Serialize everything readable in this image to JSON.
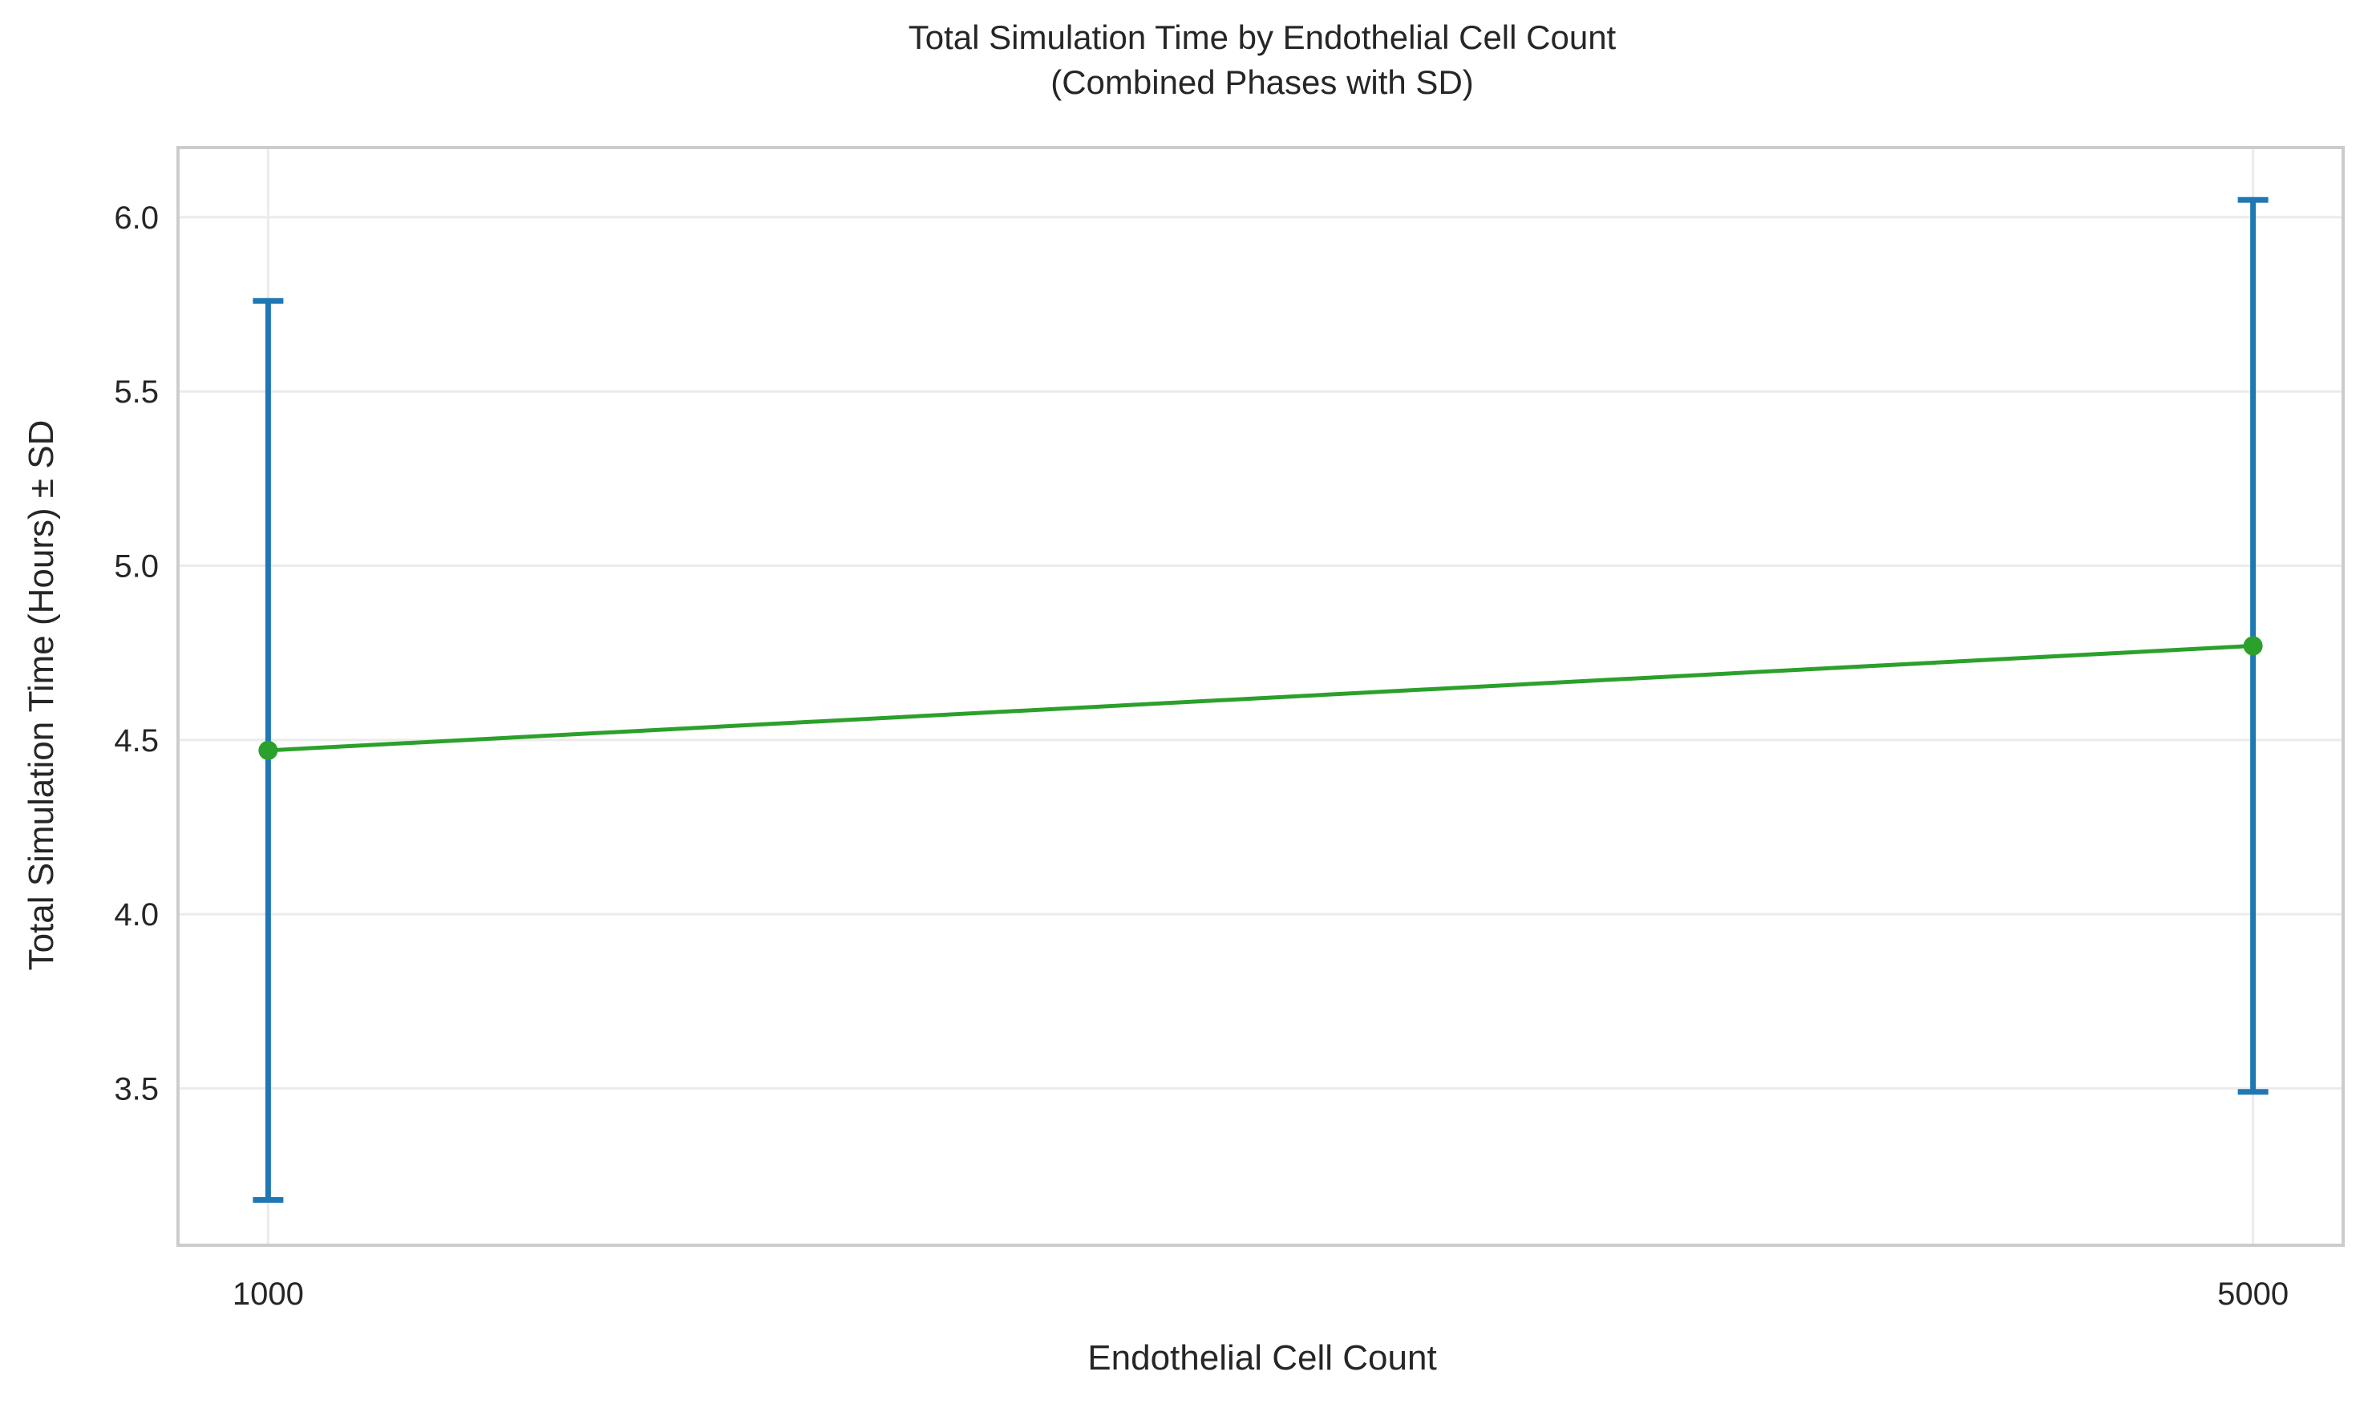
{
  "chart_data": {
    "type": "line",
    "title": "Total Simulation Time by Endothelial Cell Count",
    "subtitle": "(Combined Phases with SD)",
    "xlabel": "Endothelial Cell Count",
    "ylabel": "Total Simulation Time (Hours) ± SD",
    "x": [
      1000,
      5000
    ],
    "x_tick_labels": [
      "1000",
      "5000"
    ],
    "values": [
      4.47,
      4.77
    ],
    "sd": [
      1.29,
      1.28
    ],
    "ylim": [
      3.05,
      6.2
    ],
    "y_ticks": [
      3.5,
      4.0,
      4.5,
      5.0,
      5.5,
      6.0
    ],
    "y_tick_labels": [
      "3.5",
      "4.0",
      "4.5",
      "5.0",
      "5.5",
      "6.0"
    ],
    "grid": true,
    "colors": {
      "line": "#2ca02c",
      "errorbar": "#1f77b4",
      "grid": "#ebebeb",
      "frame": "#cccccc"
    }
  }
}
